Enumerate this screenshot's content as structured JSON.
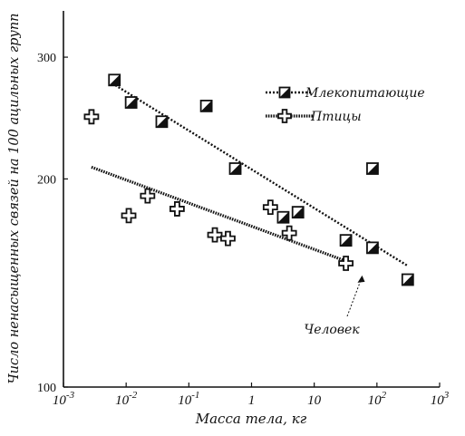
{
  "chart_data": {
    "type": "scatter",
    "xlabel": "Масса тела, кг",
    "ylabel": "Число ненасыщенных связей на 100 ацильных групп",
    "x_scale": "log",
    "y_scale": "log",
    "xlim": [
      0.001,
      1000
    ],
    "ylim": [
      100,
      350
    ],
    "x_ticks": [
      {
        "value": 0.001,
        "base": "10",
        "exp": "-3"
      },
      {
        "value": 0.01,
        "base": "10",
        "exp": "-2"
      },
      {
        "value": 0.1,
        "base": "10",
        "exp": "-1"
      },
      {
        "value": 1,
        "base": "1",
        "exp": ""
      },
      {
        "value": 10,
        "base": "10",
        "exp": ""
      },
      {
        "value": 100,
        "base": "10",
        "exp": "2"
      },
      {
        "value": 1000,
        "base": "10",
        "exp": "3"
      }
    ],
    "y_ticks": [
      {
        "value": 100,
        "label": "100"
      },
      {
        "value": 200,
        "label": "200"
      },
      {
        "value": 300,
        "label": "300"
      }
    ],
    "grid": false,
    "legend_position": "top-right",
    "series": [
      {
        "name": "Млекопитающие",
        "marker": "half-filled-square",
        "points": [
          [
            0.0065,
            278
          ],
          [
            0.012,
            258
          ],
          [
            0.037,
            242
          ],
          [
            0.19,
            255
          ],
          [
            0.55,
            207
          ],
          [
            3.2,
            176
          ],
          [
            5.5,
            179
          ],
          [
            32,
            163
          ],
          [
            85,
            207
          ],
          [
            85,
            159
          ],
          [
            310,
            143
          ]
        ],
        "trend": [
          [
            0.006,
            275
          ],
          [
            300,
            150
          ]
        ]
      },
      {
        "name": "Птицы",
        "marker": "open-cross",
        "points": [
          [
            0.0028,
            246
          ],
          [
            0.011,
            177
          ],
          [
            0.022,
            189
          ],
          [
            0.065,
            181
          ],
          [
            0.26,
            166
          ],
          [
            0.42,
            164
          ],
          [
            2.0,
            182
          ],
          [
            4.0,
            167
          ],
          [
            32,
            151
          ]
        ],
        "trend": [
          [
            0.0028,
            208
          ],
          [
            40,
            151
          ]
        ]
      }
    ],
    "annotations": [
      {
        "text": "Человек",
        "point": [
          60,
          149
        ]
      }
    ]
  }
}
